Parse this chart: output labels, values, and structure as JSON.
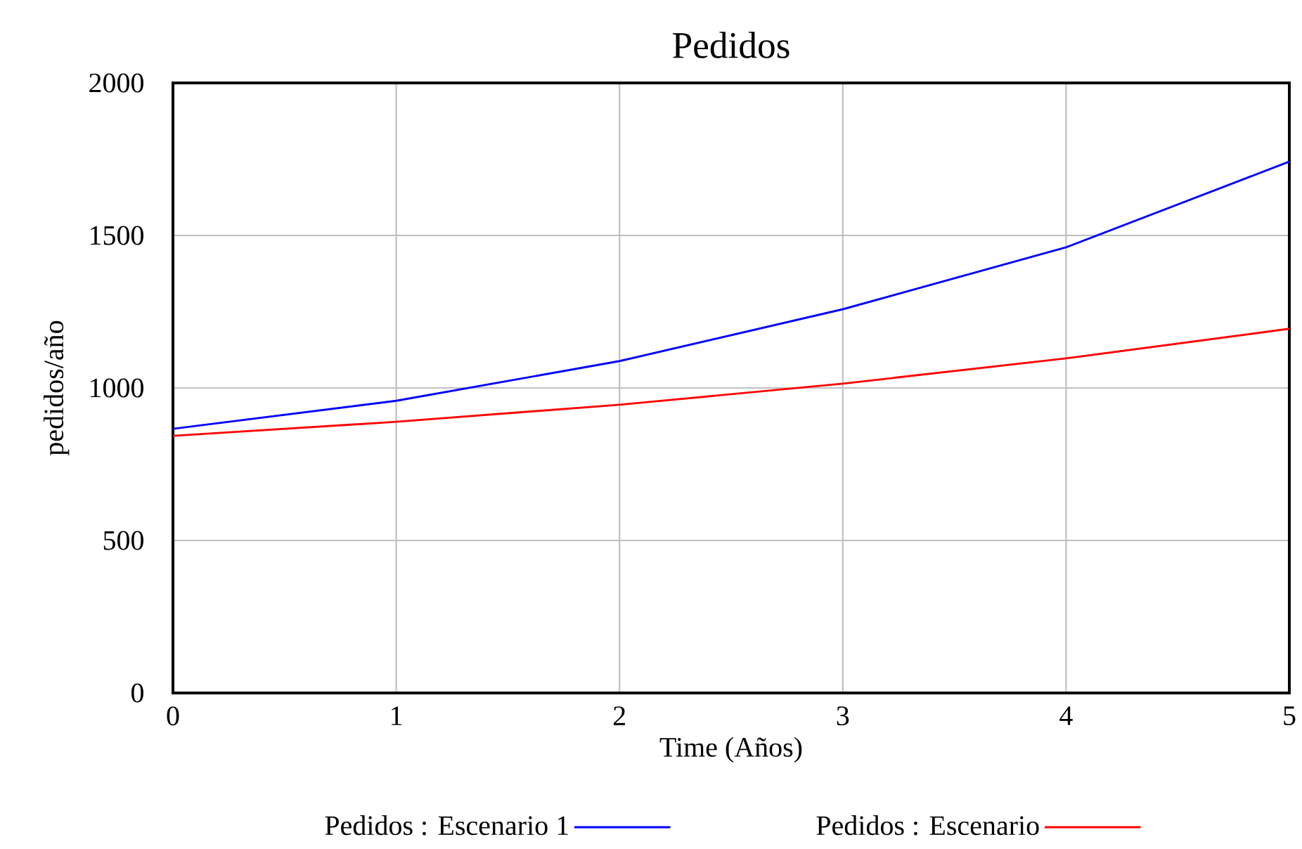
{
  "chart_data": {
    "type": "line",
    "title": "Pedidos",
    "xlabel": "Time (Años)",
    "ylabel": "pedidos/año",
    "x": [
      0,
      1,
      2,
      3,
      4,
      5
    ],
    "series": [
      {
        "name": "Pedidos : Escenario 1",
        "color": "#0000ff",
        "values": [
          866,
          958,
          1088,
          1258,
          1461,
          1742
        ]
      },
      {
        "name": "Pedidos : Escenario",
        "color": "#ff0000",
        "values": [
          843,
          889,
          945,
          1014,
          1097,
          1194
        ]
      }
    ],
    "xlim": [
      0,
      5
    ],
    "ylim": [
      0,
      2000
    ],
    "xticks": [
      0,
      1,
      2,
      3,
      4,
      5
    ],
    "yticks": [
      0,
      500,
      1000,
      1500,
      2000
    ],
    "grid": true,
    "legend": "bottom",
    "marker": "none",
    "line_style": "solid"
  }
}
